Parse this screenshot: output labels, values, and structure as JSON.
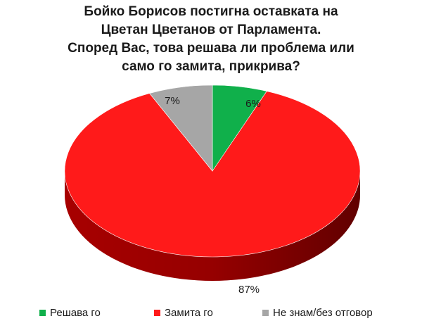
{
  "chart_data": {
    "type": "pie",
    "title_lines": [
      "Бойко Борисов постигна оставката на",
      "Цветан Цветанов от Парламента.",
      "Според Вас, това решава ли проблема или",
      "само го замита, прикрива?"
    ],
    "slices": [
      {
        "label": "Решава го",
        "value": 6,
        "display": "6%",
        "color": "#10b04b",
        "side_color": "#0a7a34"
      },
      {
        "label": "Замита го",
        "value": 87,
        "display": "87%",
        "color": "#ff1a1a",
        "side_color": "#b00000"
      },
      {
        "label": "Не знам/без отговор",
        "value": 7,
        "display": "7%",
        "color": "#a6a6a6",
        "side_color": "#6e6e6e"
      }
    ],
    "legend_position": "bottom"
  }
}
